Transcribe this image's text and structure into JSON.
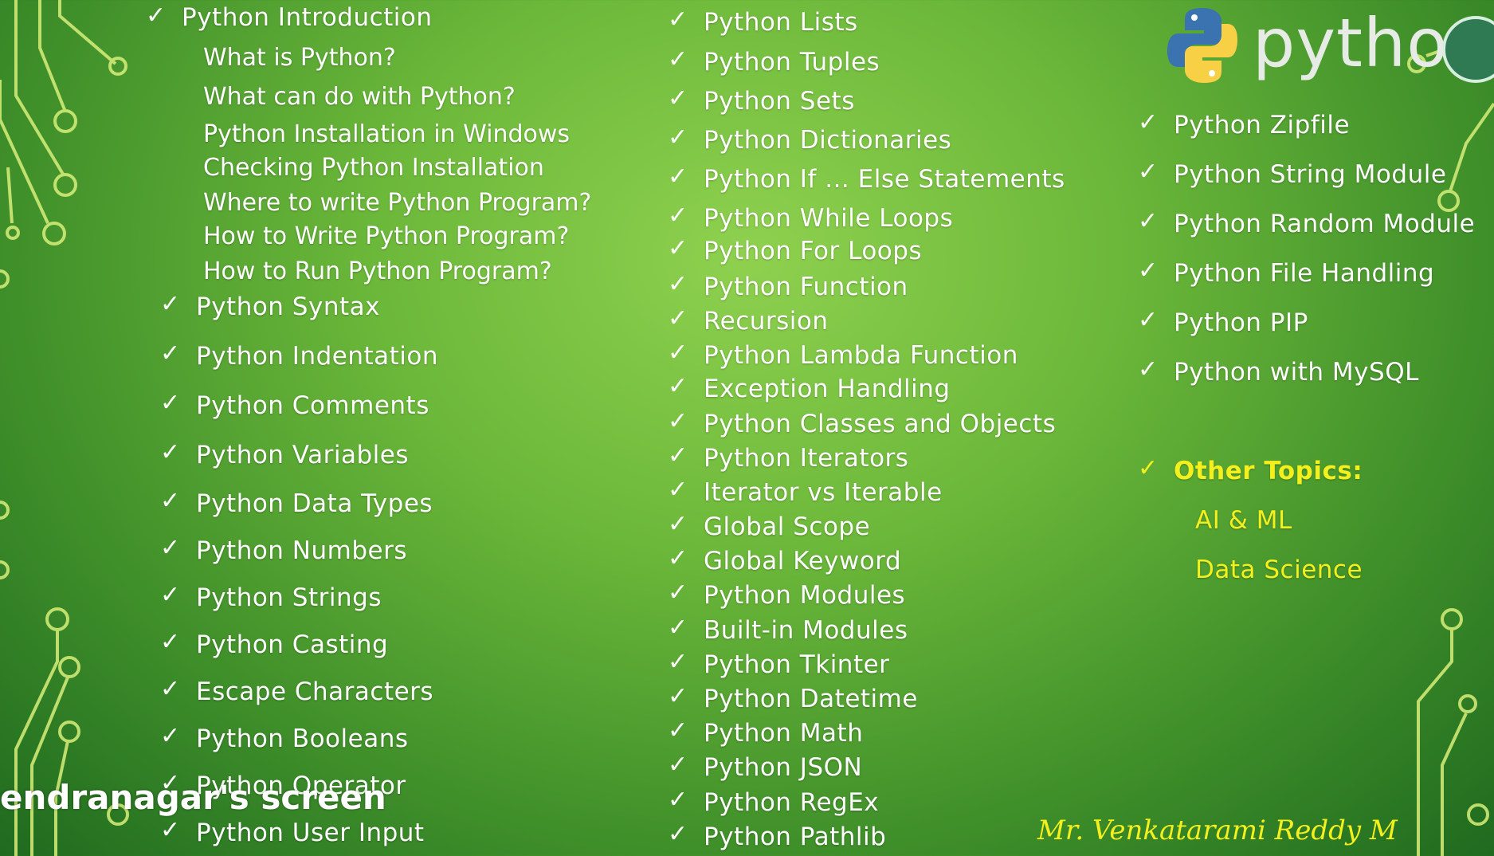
{
  "screen_share_label": "endranagar's screen",
  "logo": {
    "text": "python"
  },
  "intro": {
    "heading": "Python Introduction",
    "subtopics": [
      "What is Python?",
      "What can do with Python?",
      "Python Installation in Windows",
      "Checking Python Installation",
      "Where to write Python Program?",
      "How to Write Python Program?",
      "How to Run Python Program?"
    ]
  },
  "column1": [
    "Python Syntax",
    "Python Indentation",
    "Python Comments",
    "Python Variables",
    "Python Data Types",
    "Python Numbers",
    "Python Strings",
    "Python Casting",
    "Escape Characters",
    "Python Booleans",
    "Python Operator",
    "Python User Input"
  ],
  "column2": [
    "Python Lists",
    "Python Tuples",
    "Python Sets",
    "Python Dictionaries",
    "Python If ... Else Statements",
    "Python While Loops",
    "Python For Loops",
    "Python Function",
    "Recursion",
    "Python Lambda Function",
    "Exception Handling",
    "Python Classes and Objects",
    "Python Iterators",
    "Iterator vs Iterable",
    "Global Scope",
    "Global Keyword",
    "Python Modules",
    "Built-in Modules",
    "Python Tkinter",
    "Python Datetime",
    "Python Math",
    "Python JSON",
    "Python RegEx",
    "Python Pathlib"
  ],
  "column3": [
    "Python Zipfile",
    "Python String Module",
    "Python Random Module",
    "Python File Handling",
    "Python PIP",
    "Python with MySQL"
  ],
  "other": {
    "heading": "Other Topics:",
    "items": [
      "AI & ML",
      "Data Science"
    ]
  },
  "author": "Mr. Venkatarami Reddy M",
  "colors": {
    "accent_yellow": "#f4f01e",
    "text": "#ffffff",
    "background": "#6cb83a"
  }
}
